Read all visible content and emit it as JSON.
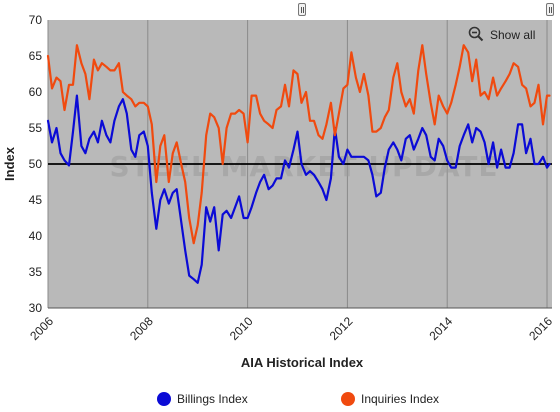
{
  "toolbar": {
    "show_all_label": "Show all"
  },
  "colors": {
    "billings": "#0b0bd6",
    "inquiries": "#f04a0f",
    "plot_bg": "#b9b9b9",
    "baseline": "#000000"
  },
  "watermark": "STEEL MARKET UPDATE",
  "chart_data": {
    "type": "line",
    "xlabel": "AIA Historical Index",
    "ylabel": "Index",
    "xlim": [
      2006,
      2016.1
    ],
    "ylim": [
      30,
      70
    ],
    "xticks": [
      "2006",
      "2008",
      "2010",
      "2012",
      "2014",
      "2016"
    ],
    "yticks": [
      "30",
      "35",
      "40",
      "45",
      "50",
      "55",
      "60",
      "65",
      "70"
    ],
    "reference_line": 50,
    "grid": "vertical",
    "legend": "bottom",
    "series": [
      {
        "name": "Billings Index",
        "color": "#0b0bd6",
        "points": [
          [
            2006.0,
            56.0
          ],
          [
            2006.08,
            53.0
          ],
          [
            2006.17,
            55.0
          ],
          [
            2006.25,
            51.5
          ],
          [
            2006.33,
            50.5
          ],
          [
            2006.42,
            49.8
          ],
          [
            2006.5,
            54.5
          ],
          [
            2006.58,
            59.5
          ],
          [
            2006.67,
            52.5
          ],
          [
            2006.75,
            51.5
          ],
          [
            2006.83,
            53.5
          ],
          [
            2006.92,
            54.5
          ],
          [
            2007.0,
            53.0
          ],
          [
            2007.08,
            56.0
          ],
          [
            2007.17,
            54.0
          ],
          [
            2007.25,
            53.0
          ],
          [
            2007.33,
            56.0
          ],
          [
            2007.42,
            58.0
          ],
          [
            2007.5,
            59.0
          ],
          [
            2007.58,
            57.0
          ],
          [
            2007.67,
            52.0
          ],
          [
            2007.75,
            51.0
          ],
          [
            2007.83,
            54.0
          ],
          [
            2007.92,
            54.5
          ],
          [
            2008.0,
            52.5
          ],
          [
            2008.08,
            46.0
          ],
          [
            2008.17,
            41.0
          ],
          [
            2008.25,
            45.0
          ],
          [
            2008.33,
            46.5
          ],
          [
            2008.42,
            44.5
          ],
          [
            2008.5,
            46.0
          ],
          [
            2008.58,
            46.5
          ],
          [
            2008.67,
            42.0
          ],
          [
            2008.75,
            38.0
          ],
          [
            2008.83,
            34.5
          ],
          [
            2008.92,
            34.0
          ],
          [
            2009.0,
            33.5
          ],
          [
            2009.08,
            36.0
          ],
          [
            2009.17,
            44.0
          ],
          [
            2009.25,
            42.0
          ],
          [
            2009.33,
            44.0
          ],
          [
            2009.42,
            38.0
          ],
          [
            2009.5,
            43.0
          ],
          [
            2009.58,
            43.5
          ],
          [
            2009.67,
            42.5
          ],
          [
            2009.75,
            44.0
          ],
          [
            2009.83,
            45.5
          ],
          [
            2009.92,
            42.5
          ],
          [
            2010.0,
            42.5
          ],
          [
            2010.08,
            44.0
          ],
          [
            2010.17,
            46.0
          ],
          [
            2010.25,
            47.5
          ],
          [
            2010.33,
            48.5
          ],
          [
            2010.42,
            46.5
          ],
          [
            2010.5,
            47.0
          ],
          [
            2010.58,
            48.0
          ],
          [
            2010.67,
            48.0
          ],
          [
            2010.75,
            50.5
          ],
          [
            2010.83,
            49.5
          ],
          [
            2010.92,
            52.0
          ],
          [
            2011.0,
            54.5
          ],
          [
            2011.08,
            50.0
          ],
          [
            2011.17,
            48.5
          ],
          [
            2011.25,
            49.0
          ],
          [
            2011.33,
            48.5
          ],
          [
            2011.42,
            47.5
          ],
          [
            2011.5,
            46.5
          ],
          [
            2011.58,
            45.0
          ],
          [
            2011.67,
            48.0
          ],
          [
            2011.75,
            55.0
          ],
          [
            2011.83,
            51.0
          ],
          [
            2011.92,
            50.0
          ],
          [
            2012.0,
            52.0
          ],
          [
            2012.08,
            51.0
          ],
          [
            2012.17,
            51.0
          ],
          [
            2012.25,
            51.0
          ],
          [
            2012.33,
            51.0
          ],
          [
            2012.42,
            50.5
          ],
          [
            2012.5,
            48.5
          ],
          [
            2012.58,
            45.5
          ],
          [
            2012.67,
            46.0
          ],
          [
            2012.75,
            49.5
          ],
          [
            2012.83,
            52.0
          ],
          [
            2012.92,
            53.0
          ],
          [
            2013.0,
            52.0
          ],
          [
            2013.08,
            50.5
          ],
          [
            2013.17,
            53.5
          ],
          [
            2013.25,
            54.0
          ],
          [
            2013.33,
            52.0
          ],
          [
            2013.42,
            53.5
          ],
          [
            2013.5,
            55.0
          ],
          [
            2013.58,
            54.0
          ],
          [
            2013.67,
            51.0
          ],
          [
            2013.75,
            50.5
          ],
          [
            2013.83,
            53.5
          ],
          [
            2013.92,
            52.5
          ],
          [
            2014.0,
            50.5
          ],
          [
            2014.08,
            49.5
          ],
          [
            2014.17,
            49.5
          ],
          [
            2014.25,
            52.5
          ],
          [
            2014.33,
            54.0
          ],
          [
            2014.42,
            55.5
          ],
          [
            2014.5,
            53.0
          ],
          [
            2014.58,
            55.0
          ],
          [
            2014.67,
            54.5
          ],
          [
            2014.75,
            53.0
          ],
          [
            2014.83,
            50.0
          ],
          [
            2014.92,
            53.0
          ],
          [
            2015.0,
            49.5
          ],
          [
            2015.08,
            52.0
          ],
          [
            2015.17,
            49.5
          ],
          [
            2015.25,
            49.5
          ],
          [
            2015.33,
            51.5
          ],
          [
            2015.42,
            55.5
          ],
          [
            2015.5,
            55.5
          ],
          [
            2015.58,
            51.5
          ],
          [
            2015.67,
            53.5
          ],
          [
            2015.75,
            50.0
          ],
          [
            2015.83,
            50.0
          ],
          [
            2015.92,
            51.0
          ],
          [
            2016.0,
            49.5
          ],
          [
            2016.05,
            50.0
          ]
        ]
      },
      {
        "name": "Inquiries Index",
        "color": "#f04a0f",
        "points": [
          [
            2006.0,
            65.0
          ],
          [
            2006.08,
            60.5
          ],
          [
            2006.17,
            62.0
          ],
          [
            2006.25,
            61.5
          ],
          [
            2006.33,
            57.5
          ],
          [
            2006.42,
            61.0
          ],
          [
            2006.5,
            61.0
          ],
          [
            2006.58,
            66.5
          ],
          [
            2006.67,
            64.0
          ],
          [
            2006.75,
            62.5
          ],
          [
            2006.83,
            59.0
          ],
          [
            2006.92,
            64.5
          ],
          [
            2007.0,
            63.0
          ],
          [
            2007.08,
            64.0
          ],
          [
            2007.17,
            63.5
          ],
          [
            2007.25,
            63.0
          ],
          [
            2007.33,
            63.0
          ],
          [
            2007.42,
            64.0
          ],
          [
            2007.5,
            60.0
          ],
          [
            2007.58,
            59.5
          ],
          [
            2007.67,
            59.0
          ],
          [
            2007.75,
            58.0
          ],
          [
            2007.83,
            58.5
          ],
          [
            2007.92,
            58.5
          ],
          [
            2008.0,
            58.0
          ],
          [
            2008.08,
            55.5
          ],
          [
            2008.17,
            47.5
          ],
          [
            2008.25,
            52.5
          ],
          [
            2008.33,
            54.0
          ],
          [
            2008.42,
            47.5
          ],
          [
            2008.5,
            51.5
          ],
          [
            2008.58,
            53.0
          ],
          [
            2008.67,
            50.0
          ],
          [
            2008.75,
            47.5
          ],
          [
            2008.83,
            42.5
          ],
          [
            2008.92,
            39.0
          ],
          [
            2009.0,
            41.5
          ],
          [
            2009.08,
            46.0
          ],
          [
            2009.17,
            54.0
          ],
          [
            2009.25,
            57.0
          ],
          [
            2009.33,
            56.5
          ],
          [
            2009.42,
            55.0
          ],
          [
            2009.5,
            50.0
          ],
          [
            2009.58,
            55.0
          ],
          [
            2009.67,
            57.0
          ],
          [
            2009.75,
            57.0
          ],
          [
            2009.83,
            57.5
          ],
          [
            2009.92,
            57.0
          ],
          [
            2010.0,
            53.0
          ],
          [
            2010.08,
            59.5
          ],
          [
            2010.17,
            59.5
          ],
          [
            2010.25,
            57.0
          ],
          [
            2010.33,
            56.0
          ],
          [
            2010.42,
            55.5
          ],
          [
            2010.5,
            55.0
          ],
          [
            2010.58,
            57.5
          ],
          [
            2010.67,
            58.0
          ],
          [
            2010.75,
            61.0
          ],
          [
            2010.83,
            58.0
          ],
          [
            2010.92,
            63.0
          ],
          [
            2011.0,
            62.5
          ],
          [
            2011.08,
            58.5
          ],
          [
            2011.17,
            60.0
          ],
          [
            2011.25,
            56.0
          ],
          [
            2011.33,
            56.0
          ],
          [
            2011.42,
            54.0
          ],
          [
            2011.5,
            53.5
          ],
          [
            2011.58,
            55.5
          ],
          [
            2011.67,
            58.5
          ],
          [
            2011.75,
            54.0
          ],
          [
            2011.83,
            57.0
          ],
          [
            2011.92,
            60.5
          ],
          [
            2012.0,
            61.0
          ],
          [
            2012.08,
            65.5
          ],
          [
            2012.17,
            62.0
          ],
          [
            2012.25,
            60.0
          ],
          [
            2012.33,
            62.5
          ],
          [
            2012.42,
            59.5
          ],
          [
            2012.5,
            54.5
          ],
          [
            2012.58,
            54.5
          ],
          [
            2012.67,
            55.0
          ],
          [
            2012.75,
            56.5
          ],
          [
            2012.83,
            57.5
          ],
          [
            2012.92,
            62.0
          ],
          [
            2013.0,
            64.0
          ],
          [
            2013.08,
            60.0
          ],
          [
            2013.17,
            58.0
          ],
          [
            2013.25,
            59.0
          ],
          [
            2013.33,
            57.0
          ],
          [
            2013.42,
            63.0
          ],
          [
            2013.5,
            66.5
          ],
          [
            2013.58,
            62.5
          ],
          [
            2013.67,
            58.5
          ],
          [
            2013.75,
            55.5
          ],
          [
            2013.83,
            59.5
          ],
          [
            2013.92,
            58.0
          ],
          [
            2014.0,
            57.0
          ],
          [
            2014.08,
            58.5
          ],
          [
            2014.17,
            61.0
          ],
          [
            2014.25,
            63.5
          ],
          [
            2014.33,
            66.5
          ],
          [
            2014.42,
            65.5
          ],
          [
            2014.5,
            61.5
          ],
          [
            2014.58,
            64.5
          ],
          [
            2014.67,
            59.5
          ],
          [
            2014.75,
            60.0
          ],
          [
            2014.83,
            59.0
          ],
          [
            2014.92,
            62.0
          ],
          [
            2015.0,
            59.5
          ],
          [
            2015.08,
            60.5
          ],
          [
            2015.17,
            61.5
          ],
          [
            2015.25,
            62.5
          ],
          [
            2015.33,
            64.0
          ],
          [
            2015.42,
            63.5
          ],
          [
            2015.5,
            61.0
          ],
          [
            2015.58,
            60.5
          ],
          [
            2015.67,
            58.0
          ],
          [
            2015.75,
            58.5
          ],
          [
            2015.83,
            61.0
          ],
          [
            2015.92,
            55.5
          ],
          [
            2016.0,
            59.5
          ],
          [
            2016.05,
            59.5
          ]
        ]
      }
    ]
  }
}
